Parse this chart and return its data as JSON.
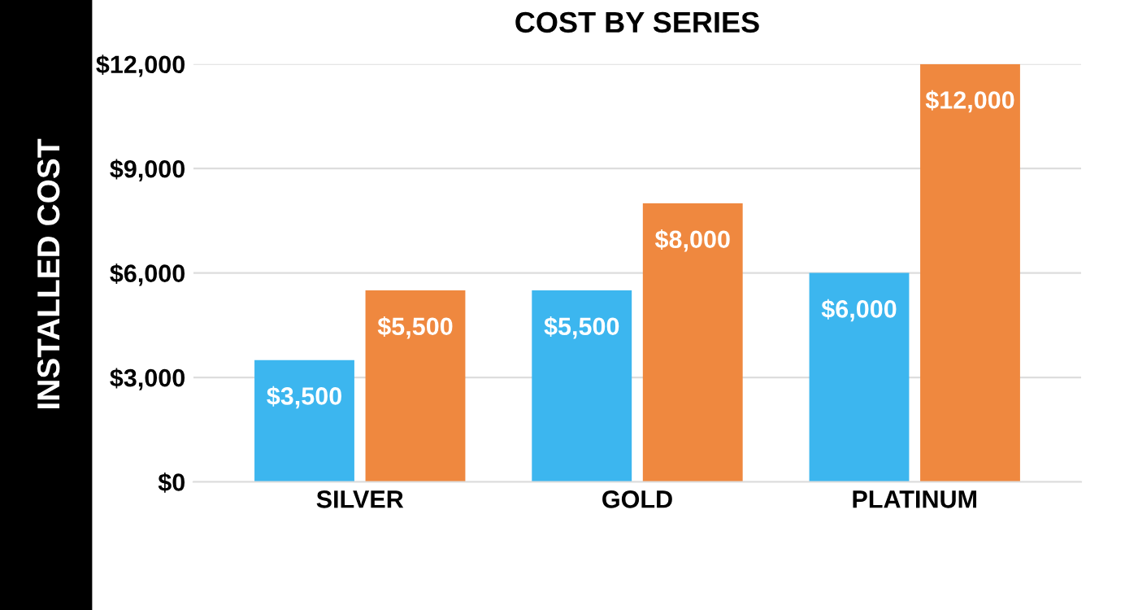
{
  "chart_data": {
    "type": "bar",
    "title": "COST BY SERIES",
    "ylabel": "INSTALLED COST",
    "categories": [
      "SILVER",
      "GOLD",
      "PLATINUM"
    ],
    "series": [
      {
        "color": "#3cb6ef",
        "values": [
          3500,
          5500,
          6000
        ],
        "value_labels": [
          "$3,500",
          "$5,500",
          "$6,000"
        ]
      },
      {
        "color": "#ef883f",
        "values": [
          5500,
          8000,
          12000
        ],
        "value_labels": [
          "$5,500",
          "$8,000",
          "$12,000"
        ]
      }
    ],
    "ylim": [
      0,
      12000
    ],
    "yticks": [
      {
        "value": 0,
        "label": "$0"
      },
      {
        "value": 3000,
        "label": "$3,000"
      },
      {
        "value": 6000,
        "label": "$6,000"
      },
      {
        "value": 9000,
        "label": "$9,000"
      },
      {
        "value": 12000,
        "label": "$12,000"
      }
    ],
    "grid": "y"
  }
}
